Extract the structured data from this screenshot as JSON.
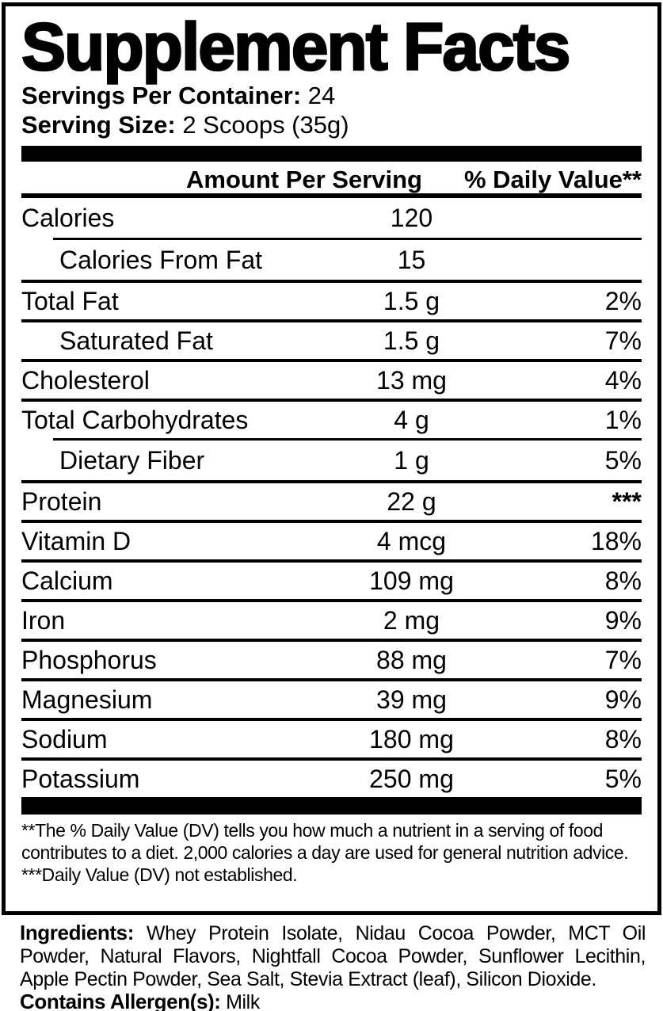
{
  "colors": {
    "ink": "#000000",
    "paper": "#ffffff"
  },
  "panel": {
    "title": "Supplement Facts",
    "servings_per_container": {
      "label": "Servings Per Container:",
      "value": "24"
    },
    "serving_size": {
      "label": "Serving Size:",
      "value": "2 Scoops (35g)"
    }
  },
  "table": {
    "amount_header": "Amount Per Serving",
    "dv_header": "% Daily Value**",
    "rows": [
      {
        "name": "Calories",
        "amount": "120",
        "dv": "",
        "indent": false
      },
      {
        "name": "Calories From Fat",
        "amount": "15",
        "dv": "",
        "indent": true
      },
      {
        "name": "Total Fat",
        "amount": "1.5 g",
        "dv": "2%",
        "indent": false
      },
      {
        "name": "Saturated Fat",
        "amount": "1.5 g",
        "dv": "7%",
        "indent": true
      },
      {
        "name": "Cholesterol",
        "amount": "13 mg",
        "dv": "4%",
        "indent": false
      },
      {
        "name": "Total Carbohydrates",
        "amount": "4 g",
        "dv": "1%",
        "indent": false
      },
      {
        "name": "Dietary Fiber",
        "amount": "1 g",
        "dv": "5%",
        "indent": true
      },
      {
        "name": "Protein",
        "amount": "22 g",
        "dv": "***",
        "indent": false
      },
      {
        "name": "Vitamin D",
        "amount": "4 mcg",
        "dv": "18%",
        "indent": false
      },
      {
        "name": "Calcium",
        "amount": "109 mg",
        "dv": "8%",
        "indent": false
      },
      {
        "name": "Iron",
        "amount": "2 mg",
        "dv": "9%",
        "indent": false
      },
      {
        "name": "Phosphorus",
        "amount": "88 mg",
        "dv": "7%",
        "indent": false
      },
      {
        "name": "Magnesium",
        "amount": "39 mg",
        "dv": "9%",
        "indent": false
      },
      {
        "name": "Sodium",
        "amount": "180 mg",
        "dv": "8%",
        "indent": false
      },
      {
        "name": "Potassium",
        "amount": "250 mg",
        "dv": "5%",
        "indent": false
      }
    ]
  },
  "footnotes": {
    "dv_note": "**The % Daily Value (DV) tells you how much a nutrient in a serving of food contributes to a diet. 2,000 calories a day are used for general nutrition advice.",
    "not_established_note": "***Daily Value (DV) not established."
  },
  "ingredients": {
    "label": "Ingredients:",
    "text": "Whey Protein Isolate, Nidau Cocoa Powder, MCT Oil Powder, Natural Flavors, Nightfall Cocoa Powder, Sunflower Lecithin, Apple Pectin Powder, Sea Salt, Stevia Extract (leaf), Silicon Dioxide."
  },
  "allergens": {
    "label": "Contains Allergen(s):",
    "value": "Milk"
  }
}
